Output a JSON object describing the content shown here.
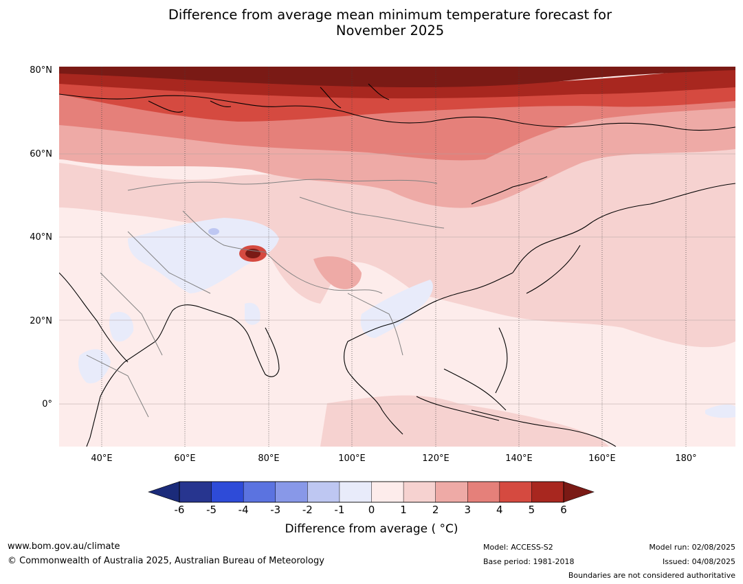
{
  "title": {
    "line1": "Difference from average mean minimum temperature forecast for",
    "line2": "November 2025"
  },
  "map": {
    "lat_labels": [
      "80°N",
      "60°N",
      "40°N",
      "20°N",
      "0°"
    ],
    "lon_labels": [
      "40°E",
      "60°E",
      "80°E",
      "100°E",
      "120°E",
      "140°E",
      "160°E",
      "180°"
    ],
    "extent": {
      "lon": [
        30,
        192
      ],
      "lat": [
        -10,
        80
      ]
    }
  },
  "colorbar": {
    "ticks": [
      "-6",
      "-5",
      "-4",
      "-3",
      "-2",
      "-1",
      "0",
      "1",
      "2",
      "3",
      "4",
      "5",
      "6"
    ],
    "colors": [
      "#27358f",
      "#2e4bd8",
      "#5b73e0",
      "#8898e8",
      "#bec7f2",
      "#e8ebfa",
      "#fdeceb",
      "#f6d2d0",
      "#eeaaa6",
      "#e5807a",
      "#d54a40",
      "#a8271f"
    ],
    "under_color": "#1b2b7a",
    "over_color": "#7a1a15",
    "label": "Difference from average ( °C)"
  },
  "footer": {
    "url": "www.bom.gov.au/climate",
    "copyright": "© Commonwealth of Australia 2025, Australian Bureau of Meteorology",
    "model": "Model: ACCESS-S2",
    "base_period": "Base period: 1981-2018",
    "model_run": "Model run: 02/08/2025",
    "issued": "Issued: 04/08/2025",
    "disclaimer": "Boundaries are not considered authoritative"
  }
}
